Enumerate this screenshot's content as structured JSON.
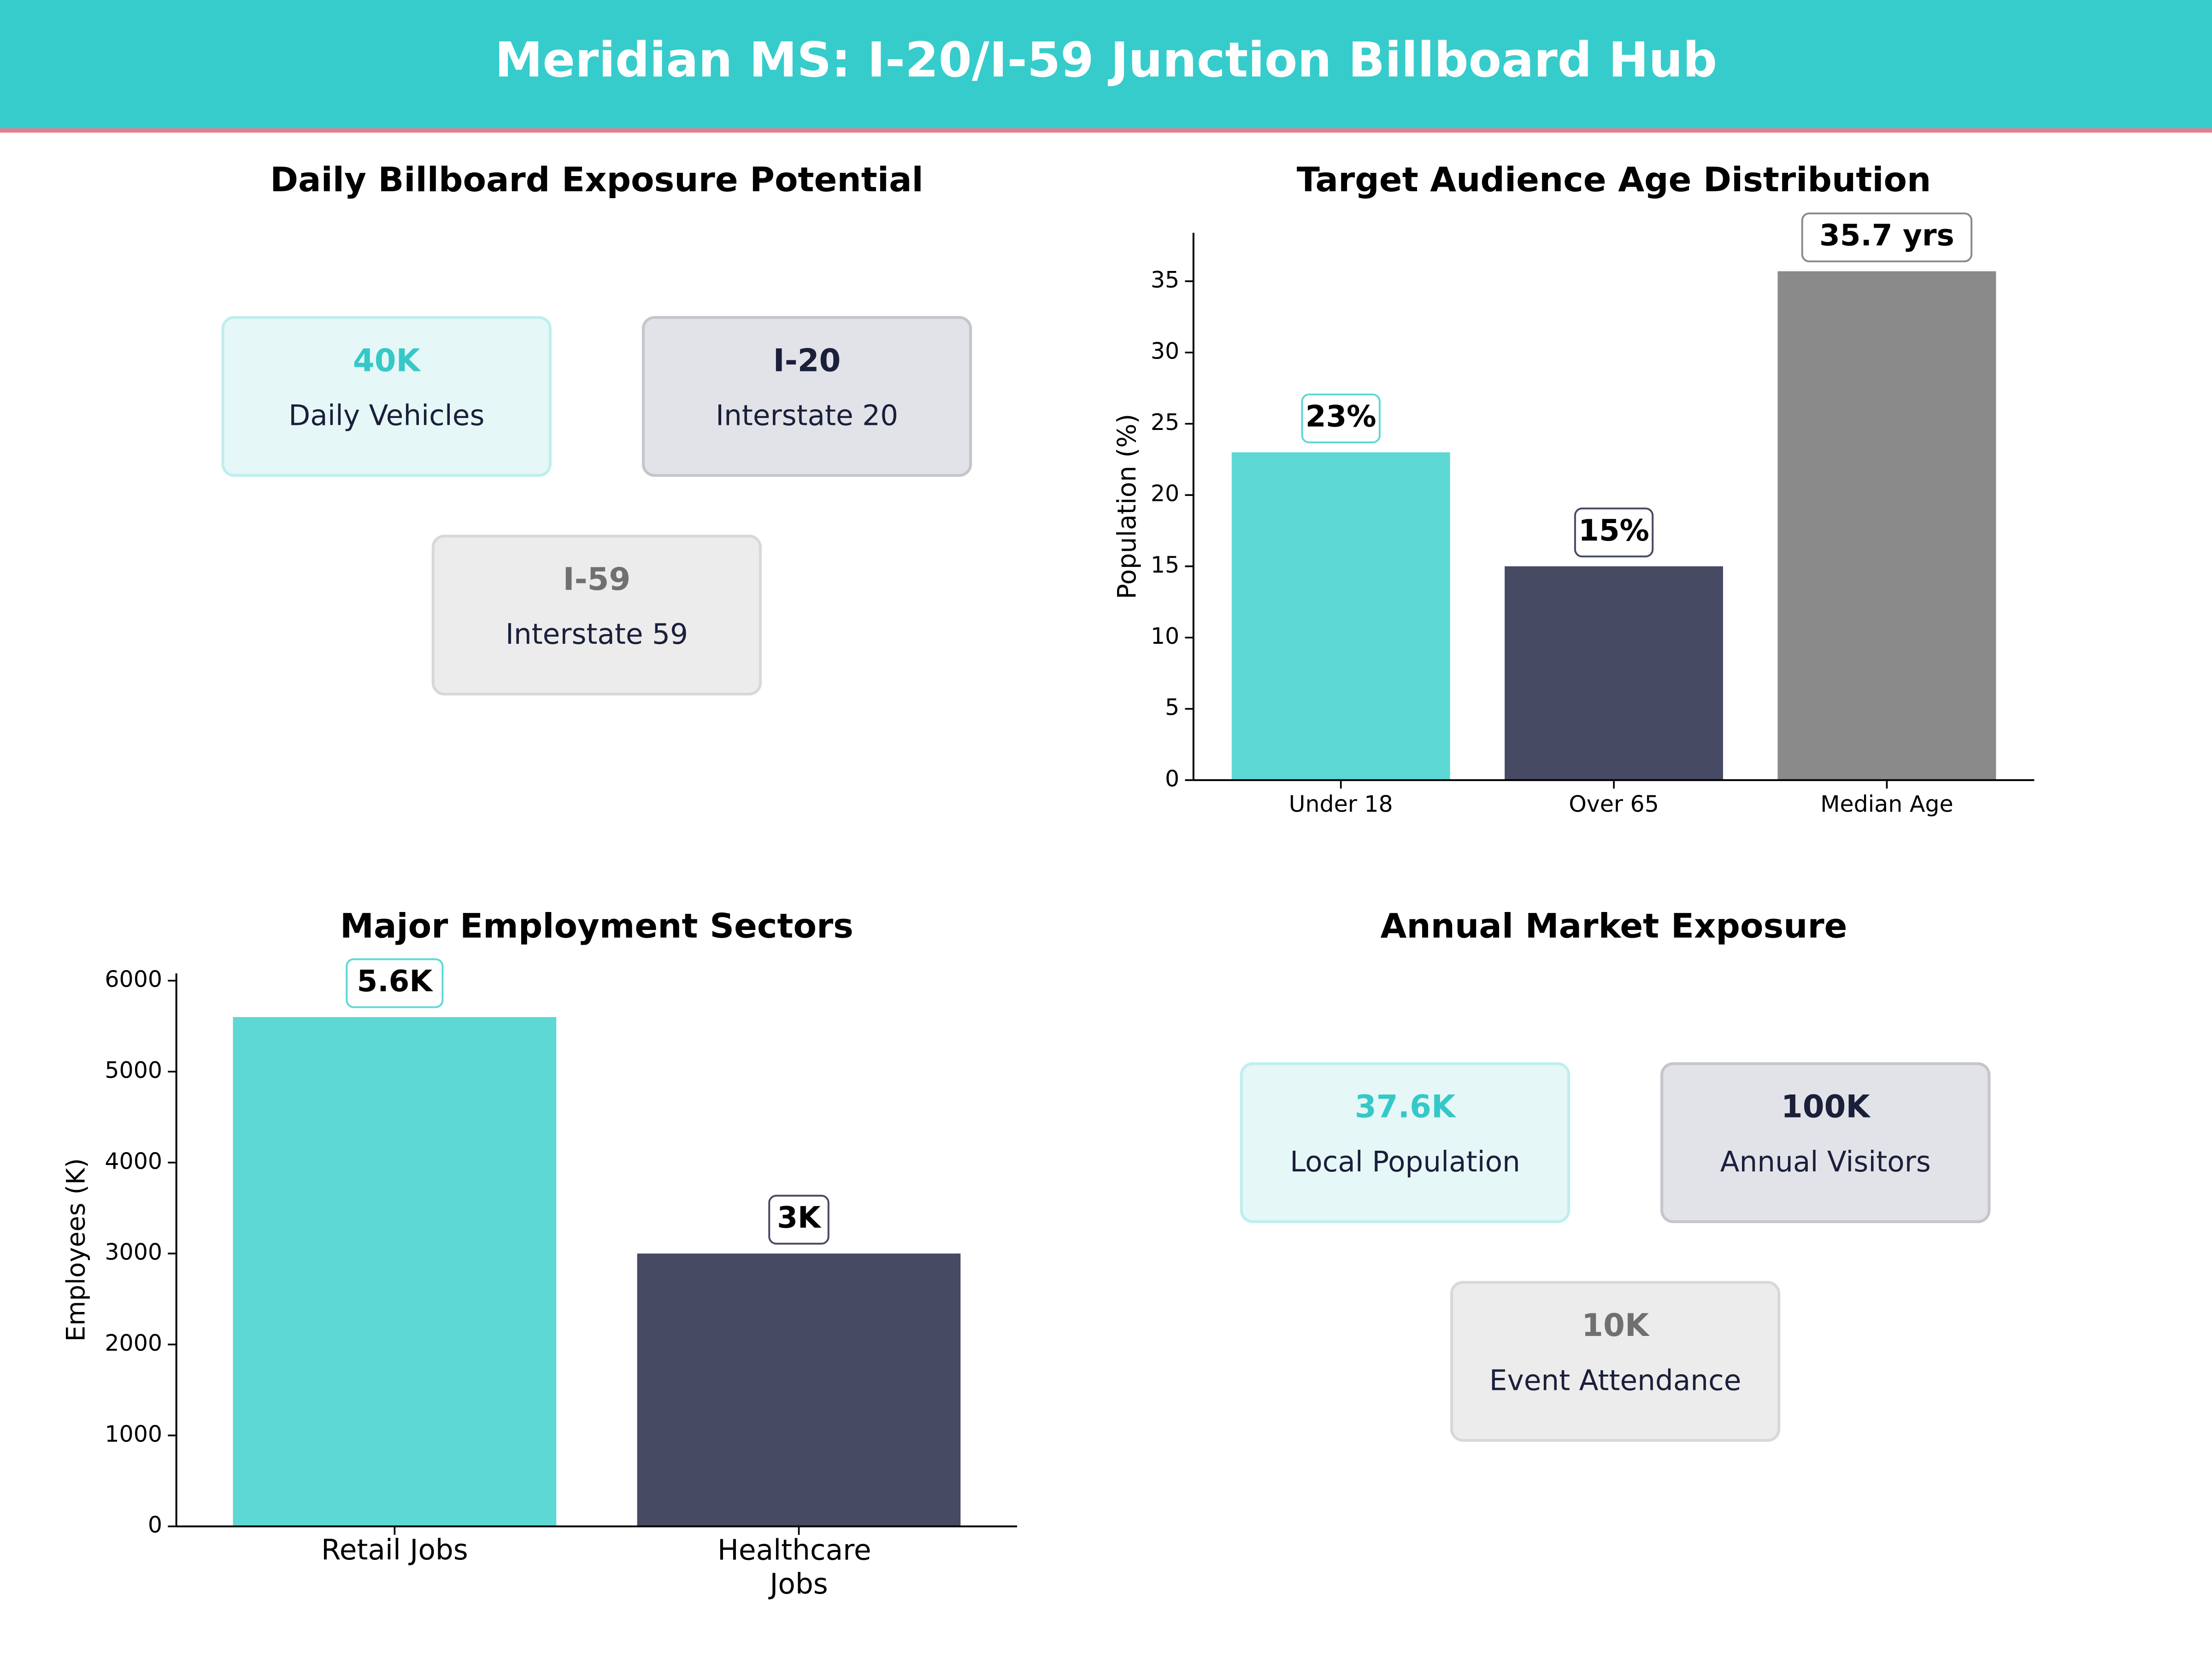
{
  "title": "Meridian MS: I-20/I-59 Junction Billboard Hub",
  "exposure": {
    "title": "Daily Billboard Exposure Potential",
    "cards": [
      {
        "value": "40K",
        "label": "Daily Vehicles"
      },
      {
        "value": "I-20",
        "label": "Interstate 20"
      },
      {
        "value": "I-59",
        "label": "Interstate 59"
      }
    ]
  },
  "chart_data": [
    {
      "type": "bar",
      "title": "Target Audience Age Distribution",
      "ylabel": "Population (%)",
      "categories": [
        "Under 18",
        "Over 65",
        "Median Age"
      ],
      "values": [
        23,
        15,
        35.7
      ],
      "value_labels": [
        "23%",
        "15%",
        "35.7 yrs"
      ],
      "colors": [
        "#5dd8d4",
        "#464a62",
        "#8a8a8a"
      ],
      "ylim": [
        0,
        38.4
      ],
      "yticks": [
        0,
        5,
        10,
        15,
        20,
        25,
        30,
        35
      ]
    },
    {
      "type": "bar",
      "title": "Major Employment Sectors",
      "ylabel": "Employees (K)",
      "categories": [
        "Retail Jobs",
        "Healthcare Jobs"
      ],
      "values": [
        5600,
        3000
      ],
      "value_labels": [
        "5.6K",
        "3K"
      ],
      "colors": [
        "#5dd8d4",
        "#464a62"
      ],
      "ylim": [
        0,
        6080
      ],
      "yticks": [
        0,
        1000,
        2000,
        3000,
        4000,
        5000,
        6000
      ]
    }
  ],
  "market": {
    "title": "Annual Market Exposure",
    "cards": [
      {
        "value": "37.6K",
        "label": "Local Population"
      },
      {
        "value": "100K",
        "label": "Annual Visitors"
      },
      {
        "value": "10K",
        "label": "Event Attendance"
      }
    ]
  }
}
